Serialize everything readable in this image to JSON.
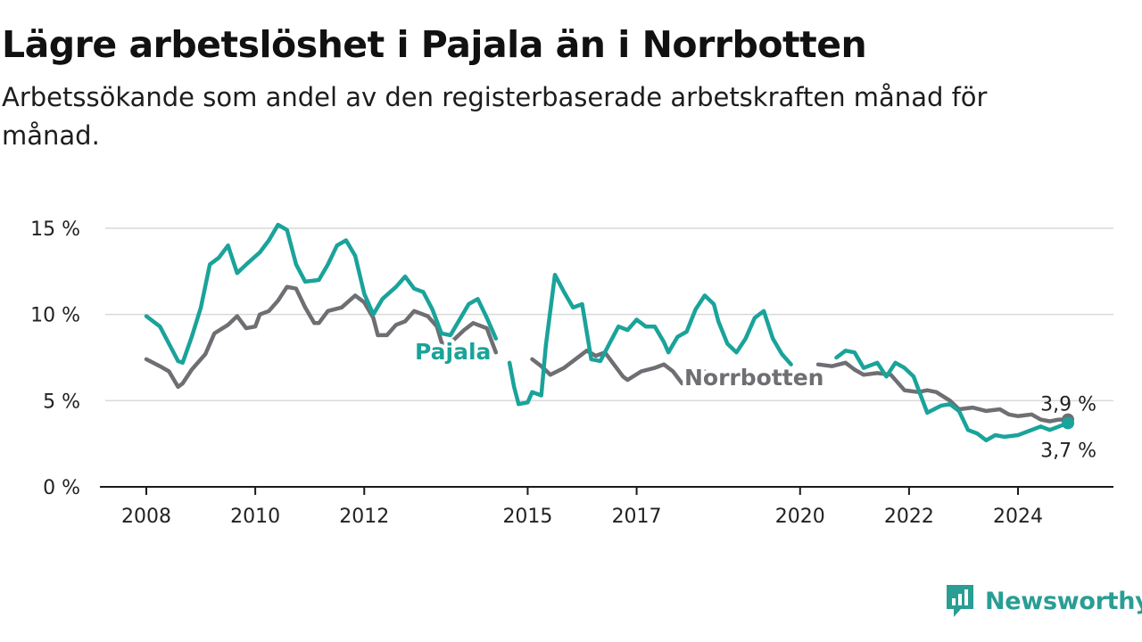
{
  "header": {
    "title": "Lägre arbetslöshet i Pajala än i Norrbotten",
    "subtitle": "Arbetssökande som andel av den registerbaserade arbetskraften månad för månad."
  },
  "brand": {
    "name": "Newsworthy",
    "icon": "newsworthy-logo-icon",
    "color": "#2a9d94"
  },
  "chart_data": {
    "type": "line",
    "x_range": [
      "2008-01",
      "2024-12"
    ],
    "x_ticks": [
      {
        "year": 2008,
        "label": "2008"
      },
      {
        "year": 2010,
        "label": "2010"
      },
      {
        "year": 2012,
        "label": "2012"
      },
      {
        "year": 2015,
        "label": "2015"
      },
      {
        "year": 2017,
        "label": "2017"
      },
      {
        "year": 2020,
        "label": "2020"
      },
      {
        "year": 2022,
        "label": "2022"
      },
      {
        "year": 2024,
        "label": "2024"
      }
    ],
    "y_ticks": [
      {
        "value": 0,
        "label": "0 %"
      },
      {
        "value": 5,
        "label": "5 %"
      },
      {
        "value": 10,
        "label": "10 %"
      },
      {
        "value": 15,
        "label": "15 %"
      }
    ],
    "ylim": [
      0,
      15
    ],
    "grid": true,
    "series": [
      {
        "name": "Norrbotten",
        "color": "#6e6e73",
        "end_label": "3,9 %",
        "points": [
          [
            "2008-01",
            7.4
          ],
          [
            "2008-04",
            7.0
          ],
          [
            "2008-06",
            6.7
          ],
          [
            "2008-08",
            5.8
          ],
          [
            "2008-09",
            6.0
          ],
          [
            "2008-11",
            6.8
          ],
          [
            "2009-02",
            7.7
          ],
          [
            "2009-04",
            8.9
          ],
          [
            "2009-07",
            9.4
          ],
          [
            "2009-09",
            9.9
          ],
          [
            "2009-11",
            9.2
          ],
          [
            "2010-01",
            9.3
          ],
          [
            "2010-02",
            10.0
          ],
          [
            "2010-04",
            10.2
          ],
          [
            "2010-06",
            10.8
          ],
          [
            "2010-08",
            11.6
          ],
          [
            "2010-10",
            11.5
          ],
          [
            "2010-12",
            10.4
          ],
          [
            "2011-02",
            9.5
          ],
          [
            "2011-03",
            9.5
          ],
          [
            "2011-05",
            10.2
          ],
          [
            "2011-08",
            10.4
          ],
          [
            "2011-11",
            11.1
          ],
          [
            "2012-01",
            10.7
          ],
          [
            "2012-03",
            9.8
          ],
          [
            "2012-04",
            8.8
          ],
          [
            "2012-06",
            8.8
          ],
          [
            "2012-08",
            9.4
          ],
          [
            "2012-10",
            9.6
          ],
          [
            "2012-12",
            10.2
          ],
          [
            "2013-03",
            9.9
          ],
          [
            "2013-05",
            9.3
          ],
          [
            "2013-06",
            8.4
          ],
          [
            "2013-07",
            8.1
          ],
          [
            "2013-09",
            8.6
          ],
          [
            "2013-11",
            9.1
          ],
          [
            "2014-01",
            9.5
          ],
          [
            "2014-04",
            9.2
          ],
          [
            "2014-05",
            8.5
          ],
          [
            "2014-06",
            7.8
          ],
          [
            null,
            null
          ],
          [
            "2015-02",
            7.4
          ],
          [
            "2015-04",
            7.0
          ],
          [
            "2015-06",
            6.5
          ],
          [
            "2015-09",
            6.9
          ],
          [
            "2015-11",
            7.3
          ],
          [
            "2016-02",
            7.9
          ],
          [
            "2016-04",
            7.6
          ],
          [
            "2016-06",
            7.8
          ],
          [
            "2016-08",
            7.1
          ],
          [
            "2016-10",
            6.4
          ],
          [
            "2016-11",
            6.2
          ],
          [
            "2017-02",
            6.7
          ],
          [
            "2017-05",
            6.9
          ],
          [
            "2017-07",
            7.1
          ],
          [
            "2017-09",
            6.7
          ],
          [
            "2017-11",
            6.0
          ],
          [
            "2018-01",
            6.1
          ],
          [
            "2018-02",
            6.5
          ],
          [
            "2018-04",
            6.7
          ],
          [
            null,
            null
          ],
          [
            "2020-05",
            7.1
          ],
          [
            "2020-08",
            7.0
          ],
          [
            "2020-11",
            7.2
          ],
          [
            "2021-01",
            6.8
          ],
          [
            "2021-03",
            6.5
          ],
          [
            "2021-06",
            6.6
          ],
          [
            "2021-09",
            6.5
          ],
          [
            "2021-12",
            5.6
          ],
          [
            "2022-03",
            5.5
          ],
          [
            "2022-05",
            5.6
          ],
          [
            "2022-07",
            5.5
          ],
          [
            "2022-10",
            5.0
          ],
          [
            "2022-12",
            4.5
          ],
          [
            "2023-03",
            4.6
          ],
          [
            "2023-06",
            4.4
          ],
          [
            "2023-09",
            4.5
          ],
          [
            "2023-11",
            4.2
          ],
          [
            "2024-01",
            4.1
          ],
          [
            "2024-04",
            4.2
          ],
          [
            "2024-06",
            3.9
          ],
          [
            "2024-08",
            3.8
          ],
          [
            "2024-10",
            3.9
          ],
          [
            "2024-12",
            3.9
          ]
        ]
      },
      {
        "name": "Pajala",
        "color": "#1aa39a",
        "end_label": "3,7 %",
        "points": [
          [
            "2008-01",
            9.9
          ],
          [
            "2008-04",
            9.3
          ],
          [
            "2008-06",
            8.3
          ],
          [
            "2008-08",
            7.3
          ],
          [
            "2008-09",
            7.2
          ],
          [
            "2008-11",
            8.7
          ],
          [
            "2009-01",
            10.4
          ],
          [
            "2009-03",
            12.9
          ],
          [
            "2009-05",
            13.3
          ],
          [
            "2009-07",
            14.0
          ],
          [
            "2009-09",
            12.4
          ],
          [
            "2009-11",
            12.9
          ],
          [
            "2010-02",
            13.6
          ],
          [
            "2010-04",
            14.3
          ],
          [
            "2010-06",
            15.2
          ],
          [
            "2010-08",
            14.9
          ],
          [
            "2010-10",
            12.9
          ],
          [
            "2010-12",
            11.9
          ],
          [
            "2011-03",
            12.0
          ],
          [
            "2011-05",
            12.9
          ],
          [
            "2011-07",
            14.0
          ],
          [
            "2011-09",
            14.3
          ],
          [
            "2011-11",
            13.4
          ],
          [
            "2012-01",
            11.2
          ],
          [
            "2012-03",
            10.0
          ],
          [
            "2012-05",
            10.9
          ],
          [
            "2012-08",
            11.6
          ],
          [
            "2012-10",
            12.2
          ],
          [
            "2012-12",
            11.5
          ],
          [
            "2013-02",
            11.3
          ],
          [
            "2013-04",
            10.3
          ],
          [
            "2013-06",
            8.9
          ],
          [
            "2013-08",
            8.8
          ],
          [
            "2013-10",
            9.7
          ],
          [
            "2013-12",
            10.6
          ],
          [
            "2014-02",
            10.9
          ],
          [
            "2014-04",
            9.8
          ],
          [
            "2014-06",
            8.6
          ],
          [
            null,
            null
          ],
          [
            "2014-09",
            7.2
          ],
          [
            "2014-10",
            5.8
          ],
          [
            "2014-11",
            4.8
          ],
          [
            "2015-01",
            4.9
          ],
          [
            "2015-02",
            5.5
          ],
          [
            "2015-04",
            5.3
          ],
          [
            "2015-05",
            8.2
          ],
          [
            "2015-07",
            12.3
          ],
          [
            "2015-09",
            11.3
          ],
          [
            "2015-11",
            10.4
          ],
          [
            "2016-01",
            10.6
          ],
          [
            "2016-02",
            9.0
          ],
          [
            "2016-03",
            7.4
          ],
          [
            "2016-05",
            7.3
          ],
          [
            "2016-07",
            8.3
          ],
          [
            "2016-09",
            9.3
          ],
          [
            "2016-11",
            9.1
          ],
          [
            "2017-01",
            9.7
          ],
          [
            "2017-03",
            9.3
          ],
          [
            "2017-05",
            9.3
          ],
          [
            "2017-07",
            8.4
          ],
          [
            "2017-08",
            7.8
          ],
          [
            "2017-10",
            8.7
          ],
          [
            "2017-12",
            9.0
          ],
          [
            "2018-02",
            10.3
          ],
          [
            "2018-04",
            11.1
          ],
          [
            "2018-06",
            10.6
          ],
          [
            "2018-07",
            9.6
          ],
          [
            "2018-09",
            8.3
          ],
          [
            "2018-11",
            7.8
          ],
          [
            "2019-01",
            8.6
          ],
          [
            "2019-03",
            9.8
          ],
          [
            "2019-05",
            10.2
          ],
          [
            "2019-07",
            8.6
          ],
          [
            "2019-09",
            7.7
          ],
          [
            "2019-11",
            7.1
          ],
          [
            null,
            null
          ],
          [
            "2020-09",
            7.5
          ],
          [
            "2020-11",
            7.9
          ],
          [
            "2021-01",
            7.8
          ],
          [
            "2021-03",
            6.9
          ],
          [
            "2021-06",
            7.2
          ],
          [
            "2021-08",
            6.4
          ],
          [
            "2021-10",
            7.2
          ],
          [
            "2021-12",
            6.9
          ],
          [
            "2022-02",
            6.4
          ],
          [
            "2022-05",
            4.3
          ],
          [
            "2022-08",
            4.7
          ],
          [
            "2022-10",
            4.8
          ],
          [
            "2022-12",
            4.4
          ],
          [
            "2023-02",
            3.3
          ],
          [
            "2023-04",
            3.1
          ],
          [
            "2023-06",
            2.7
          ],
          [
            "2023-08",
            3.0
          ],
          [
            "2023-10",
            2.9
          ],
          [
            "2024-01",
            3.0
          ],
          [
            "2024-03",
            3.2
          ],
          [
            "2024-06",
            3.5
          ],
          [
            "2024-08",
            3.3
          ],
          [
            "2024-10",
            3.5
          ],
          [
            "2024-12",
            3.7
          ]
        ]
      }
    ]
  }
}
